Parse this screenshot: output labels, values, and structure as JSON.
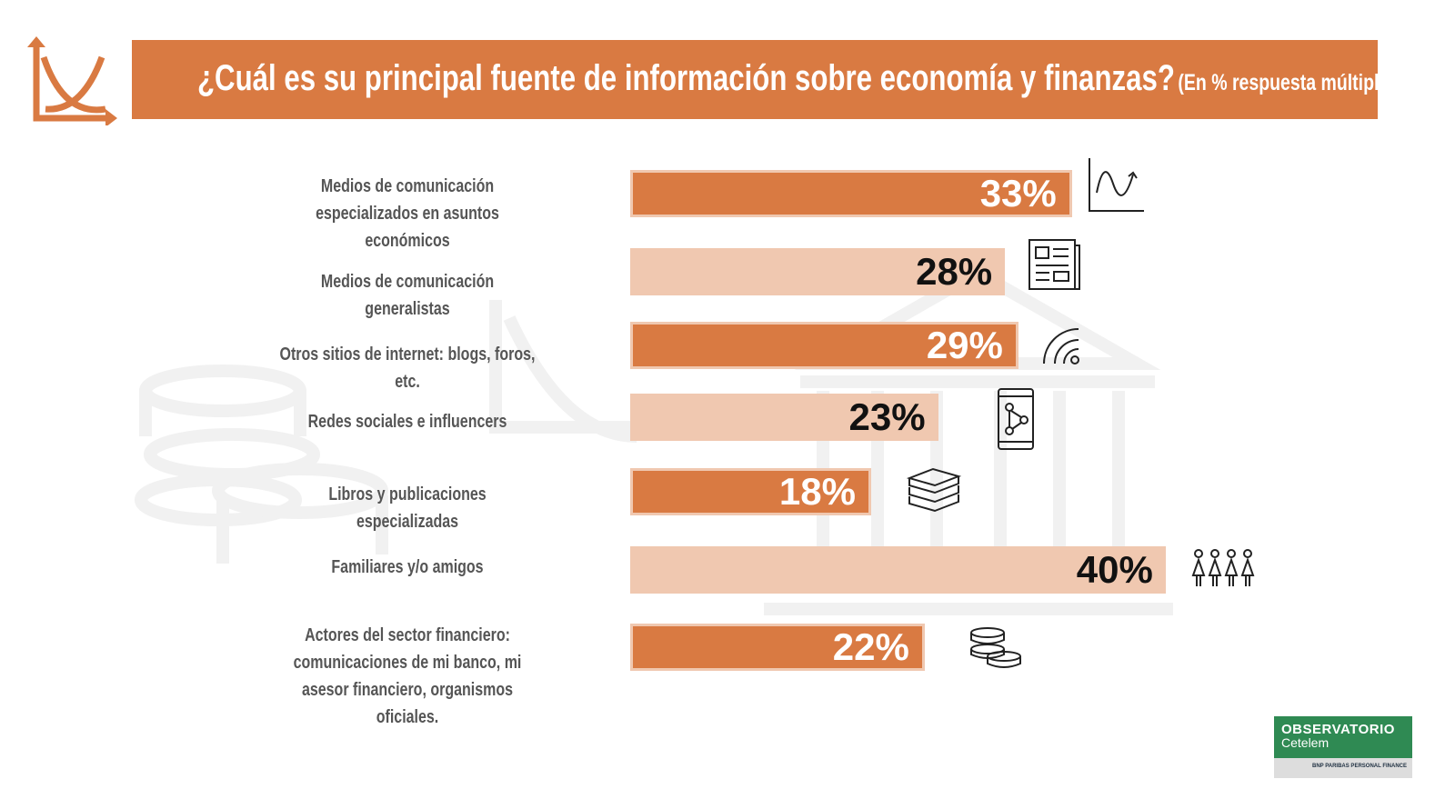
{
  "header": {
    "title": "¿Cuál es su principal fuente de información sobre economía y finanzas?",
    "subtitle": "(En % respuesta múltiple)"
  },
  "colors": {
    "accent": "#d97a42",
    "light": "#f0c8b0",
    "brand": "#2f8a53"
  },
  "chart_data": {
    "type": "bar",
    "orientation": "horizontal",
    "title": "¿Cuál es su principal fuente de información sobre economía y finanzas?",
    "subtitle": "(En % respuesta múltiple)",
    "categories": [
      "Medios de comunicación especializados en asuntos económicos",
      "Medios de comunicación generalistas",
      "Otros sitios de internet: blogs, foros, etc.",
      "Redes sociales e influencers",
      "Libros y publicaciones especializadas",
      "Familiares y/o amigos",
      "Actores del sector financiero: comunicaciones de mi banco, mi asesor financiero, organismos oficiales."
    ],
    "values": [
      33,
      28,
      29,
      23,
      18,
      40,
      22
    ],
    "value_labels": [
      "33%",
      "28%",
      "29%",
      "23%",
      "18%",
      "40%",
      "22%"
    ],
    "icons": [
      "chart-wave-icon",
      "newspaper-icon",
      "wifi-signal-icon",
      "smartphone-network-icon",
      "books-icon",
      "family-icon",
      "coins-icon"
    ],
    "unit": "%",
    "xlim": [
      0,
      40
    ]
  },
  "brand": {
    "line1": "OBSERVATORIO",
    "line2": "Cetelem",
    "footer": "BNP PARIBAS PERSONAL FINANCE"
  }
}
